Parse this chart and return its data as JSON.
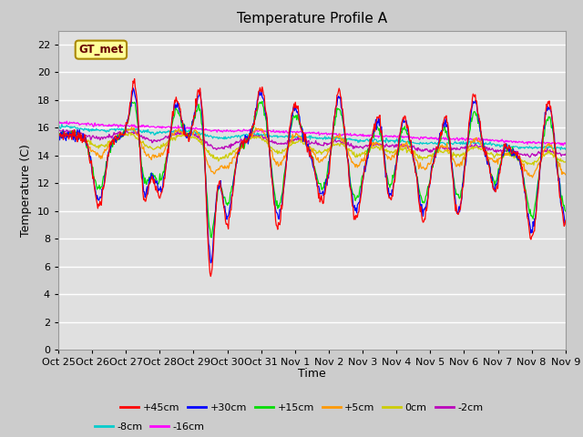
{
  "title": "Temperature Profile A",
  "xlabel": "Time",
  "ylabel": "Temperature (C)",
  "ylim": [
    0,
    23
  ],
  "yticks": [
    0,
    2,
    4,
    6,
    8,
    10,
    12,
    14,
    16,
    18,
    20,
    22
  ],
  "xtick_labels": [
    "Oct 25",
    "Oct 26",
    "Oct 27",
    "Oct 28",
    "Oct 29",
    "Oct 30",
    "Oct 31",
    "Nov 1",
    "Nov 2",
    "Nov 3",
    "Nov 4",
    "Nov 5",
    "Nov 6",
    "Nov 7",
    "Nov 8",
    "Nov 9"
  ],
  "series_colors": {
    "+45cm": "#ff0000",
    "+30cm": "#0000ff",
    "+15cm": "#00dd00",
    "+5cm": "#ff9900",
    "0cm": "#cccc00",
    "-2cm": "#bb00bb",
    "-8cm": "#00cccc",
    "-16cm": "#ff00ff"
  },
  "title_fontsize": 11,
  "axis_fontsize": 9,
  "tick_fontsize": 8
}
